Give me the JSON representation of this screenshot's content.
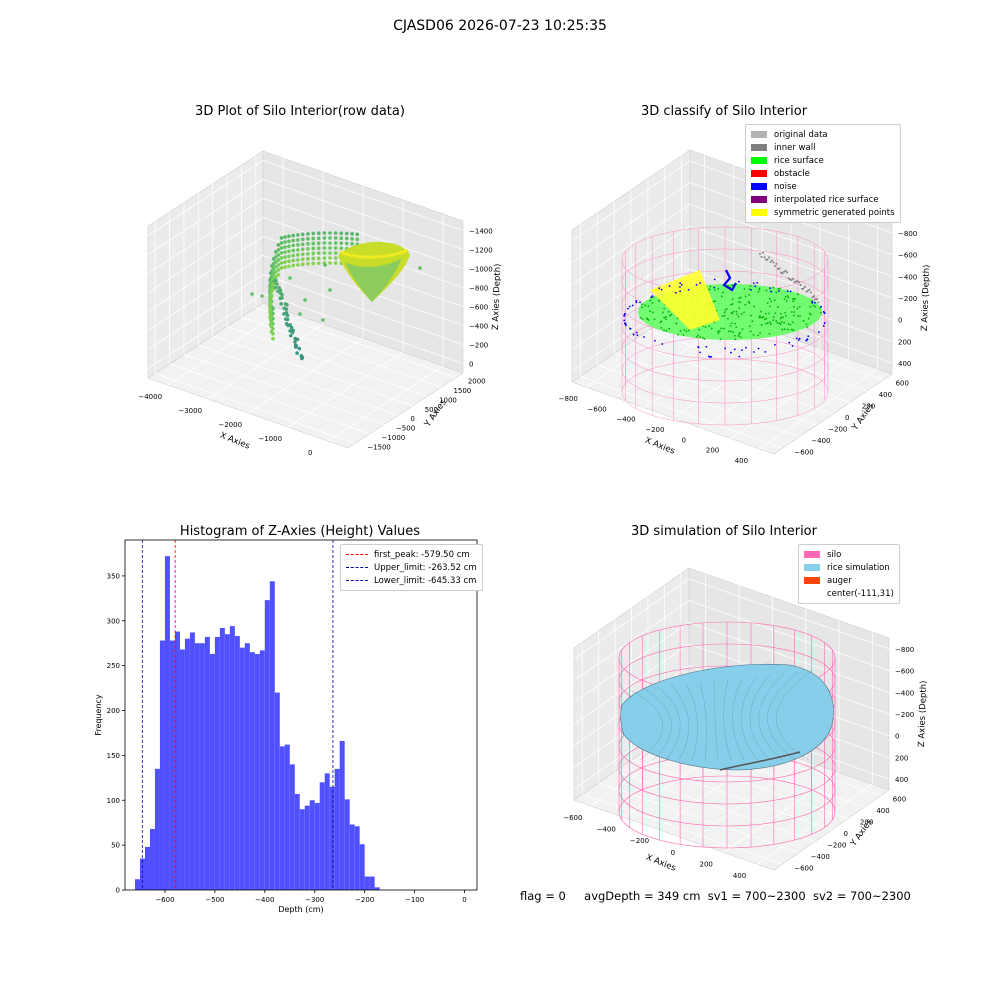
{
  "suptitle": "CJASD06 2026-07-23 10:25:35",
  "plots": {
    "raw": {
      "title": "3D Plot of Silo Interior(row data)",
      "xlabel": "X Axies",
      "ylabel": "Y Axies",
      "zlabel": "Z Axies (Depth)",
      "xticks": [
        "−4000",
        "−3000",
        "−2000",
        "−1000",
        "0"
      ],
      "yticks": [
        "−1500",
        "−1000",
        "−500",
        "0",
        "500",
        "1000",
        "1500",
        "2000"
      ],
      "zticks": [
        "−1400",
        "−1200",
        "−1000",
        "−800",
        "−600",
        "−400",
        "−200",
        "0"
      ]
    },
    "classify": {
      "title": "3D classify of Silo Interior",
      "xlabel": "X Axies",
      "ylabel": "Y Axies",
      "zlabel": "Z Axies (Depth)",
      "xticks": [
        "−800",
        "−600",
        "−400",
        "−200",
        "0",
        "200",
        "400"
      ],
      "yticks": [
        "−600",
        "−400",
        "−200",
        "0",
        "200",
        "400",
        "600"
      ],
      "zticks": [
        "−800",
        "−600",
        "−400",
        "−200",
        "0",
        "200",
        "400"
      ],
      "legend": [
        {
          "label": "original data",
          "color": "#b3b3b3"
        },
        {
          "label": "inner wall",
          "color": "#808080"
        },
        {
          "label": "rice surface",
          "color": "#00ff00"
        },
        {
          "label": "obstacle",
          "color": "#ff0000"
        },
        {
          "label": "noise",
          "color": "#0000ff"
        },
        {
          "label": "interpolated rice surface",
          "color": "#800080"
        },
        {
          "label": "symmetric generated points",
          "color": "#ffff00"
        }
      ]
    },
    "simulation": {
      "title": "3D simulation of Silo Interior",
      "xlabel": "X Axies",
      "ylabel": "Y Axies",
      "zlabel": "Z Axies (Depth)",
      "xticks": [
        "−600",
        "−400",
        "−200",
        "0",
        "200",
        "400"
      ],
      "yticks": [
        "−600",
        "−400",
        "−200",
        "0",
        "200",
        "400",
        "600"
      ],
      "zticks": [
        "−800",
        "−600",
        "−400",
        "−200",
        "0",
        "200",
        "400"
      ],
      "legend": [
        {
          "label": "silo",
          "color": "#ff69b4"
        },
        {
          "label": "rice simulation",
          "color": "#87ceeb"
        },
        {
          "label": "auger",
          "color": "#ff4500"
        },
        {
          "label": "center(-111,31)",
          "color": ""
        }
      ]
    }
  },
  "footer": {
    "flag": "flag = 0",
    "avg": "avgDepth = 349 cm",
    "sv1": "sv1 = 700~2300",
    "sv2": "sv2 = 700~2300"
  },
  "chart_data": {
    "type": "bar",
    "title": "Histogram of Z-Axies (Height) Values",
    "xlabel": "Depth (cm)",
    "ylabel": "Frequency",
    "xlim": [
      -680,
      25
    ],
    "ylim": [
      0,
      390
    ],
    "xticks": [
      -600,
      -500,
      -400,
      -300,
      -200,
      -100,
      0
    ],
    "yticks": [
      0,
      50,
      100,
      150,
      200,
      250,
      300,
      350
    ],
    "bin_start": -660,
    "bin_width": 10,
    "values": [
      12,
      35,
      48,
      68,
      135,
      278,
      372,
      278,
      288,
      268,
      280,
      287,
      275,
      275,
      282,
      263,
      282,
      292,
      285,
      294,
      283,
      270,
      275,
      265,
      263,
      267,
      323,
      344,
      220,
      160,
      162,
      140,
      107,
      90,
      94,
      100,
      97,
      120,
      130,
      115,
      135,
      166,
      101,
      73,
      71,
      51,
      15,
      15,
      3
    ],
    "bar_color": "#5050ff",
    "vlines": [
      {
        "label": "first_peak: -579.50 cm",
        "x": -579.5,
        "color": "#ff0000"
      },
      {
        "label": "Upper_limit: -263.52 cm",
        "x": -263.52,
        "color": "#0000a0"
      },
      {
        "label": "Lower_limit: -645.33 cm",
        "x": -645.33,
        "color": "#0000a0"
      }
    ]
  }
}
